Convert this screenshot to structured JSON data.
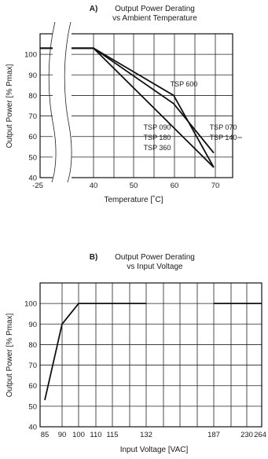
{
  "chart_data": [
    {
      "type": "line",
      "panel_label": "A)",
      "title": "Output Power Derating",
      "subtitle": "vs Ambient Temperature",
      "xlabel": "Temperature [˚C]",
      "ylabel": "Output Power [%  Pmax]",
      "ylim": [
        40,
        110
      ],
      "yticks": [
        40,
        50,
        60,
        70,
        80,
        90,
        100
      ],
      "xticks": [
        "-25",
        "40",
        "50",
        "60",
        "70"
      ],
      "broken_axis": true,
      "series": [
        {
          "name": "TSP 600",
          "x": [
            -25,
            40,
            60,
            70
          ],
          "y": [
            103,
            103,
            80,
            45
          ]
        },
        {
          "name": "TSP 090 / TSP 180 / TSP 360",
          "x": [
            -25,
            40,
            70
          ],
          "y": [
            103,
            103,
            45
          ]
        },
        {
          "name": "TSP 070 / TSP 140",
          "x": [
            -25,
            40,
            60,
            70
          ],
          "y": [
            103,
            103,
            76,
            52
          ]
        }
      ],
      "annotations": [
        "TSP 600",
        "TSP 090",
        "TSP 180",
        "TSP 360",
        "TSP 070",
        "TSP 140"
      ]
    },
    {
      "type": "line",
      "panel_label": "B)",
      "title": "Output Power Derating",
      "subtitle": "vs Input Voltage",
      "xlabel": "Input Voltage [VAC]",
      "ylabel": "Output Power [% Pmax]",
      "ylim": [
        40,
        110
      ],
      "yticks": [
        40,
        50,
        60,
        70,
        80,
        90,
        100
      ],
      "xticks": [
        "85",
        "90",
        "100",
        "110",
        "115",
        "132",
        "187",
        "230",
        "264"
      ],
      "series": [
        {
          "name": "",
          "segments": [
            {
              "x": [
                85,
                90,
                100,
                132
              ],
              "y": [
                53,
                90,
                100,
                100
              ]
            },
            {
              "x": [
                187,
                264
              ],
              "y": [
                100,
                100
              ]
            }
          ]
        }
      ]
    }
  ]
}
